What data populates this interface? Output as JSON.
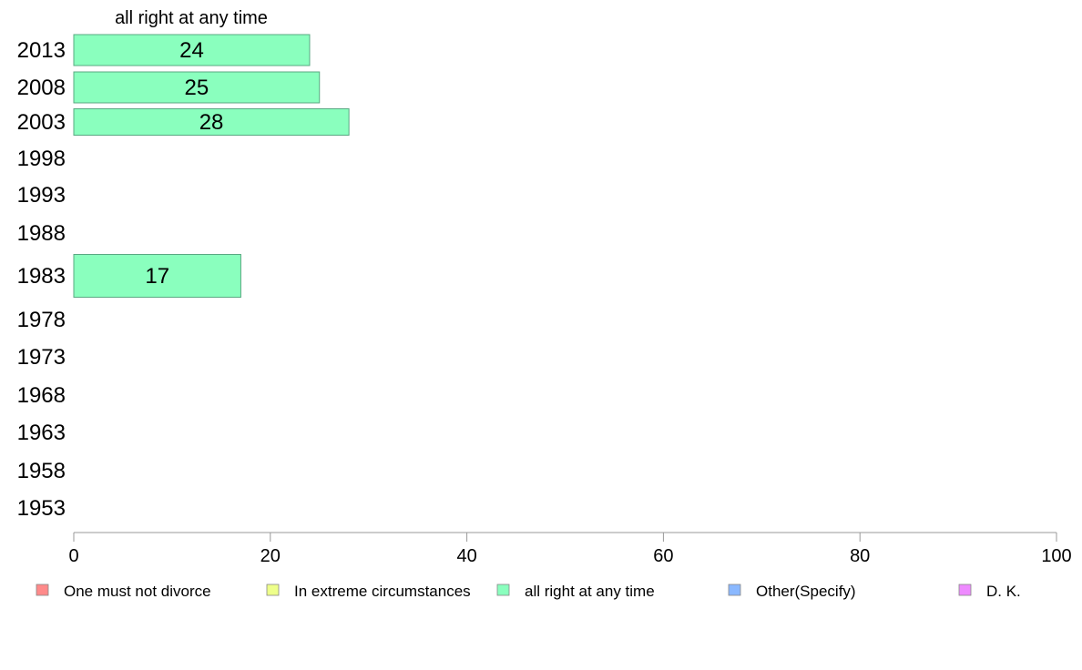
{
  "chart_data": {
    "type": "bar",
    "orientation": "horizontal",
    "title": "all right at any time",
    "categories": [
      "2013",
      "2008",
      "2003",
      "1998",
      "1993",
      "1988",
      "1983",
      "1978",
      "1973",
      "1968",
      "1963",
      "1958",
      "1953"
    ],
    "series": [
      {
        "name": "all right at any time",
        "color": "#8affbe",
        "values": [
          24,
          25,
          28,
          null,
          null,
          null,
          17,
          null,
          null,
          null,
          null,
          null,
          null
        ]
      }
    ],
    "xlim": [
      0,
      100
    ],
    "xticks": [
      0,
      20,
      40,
      60,
      80,
      100
    ],
    "grid": false,
    "legend": {
      "placement": "bottom",
      "entries": [
        {
          "label": "One must not divorce",
          "color": "#ff8a8a"
        },
        {
          "label": "In extreme circumstances",
          "color": "#eeff8a"
        },
        {
          "label": "all right at any time",
          "color": "#8affbe"
        },
        {
          "label": "Other(Specify)",
          "color": "#8ab8ff"
        },
        {
          "label": "D. K.",
          "color": "#ee8aff"
        }
      ]
    }
  }
}
